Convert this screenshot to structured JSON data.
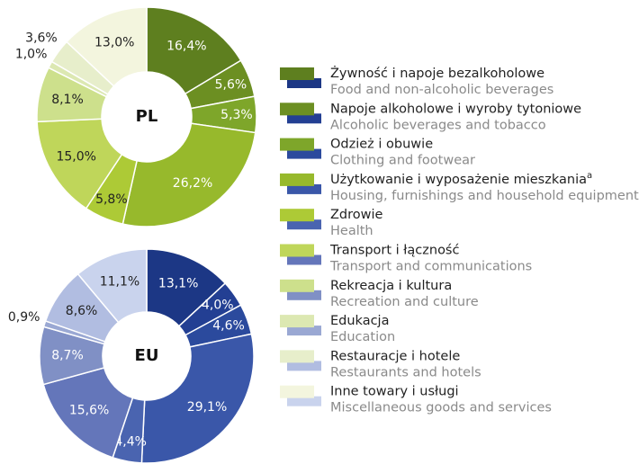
{
  "chart_data": [
    {
      "type": "pie",
      "title": "PL",
      "values": [
        16.4,
        5.6,
        5.3,
        26.2,
        5.8,
        15.0,
        8.1,
        1.0,
        3.6,
        13.0
      ],
      "value_labels": [
        "16,4%",
        "5,6%",
        "5,3%",
        "26,2%",
        "5,8%",
        "15,0%",
        "8,1%",
        "1,0%",
        "3,6%",
        "13,0%"
      ],
      "colors": [
        "#5e7f1f",
        "#6c8f22",
        "#7ea62a",
        "#97b92c",
        "#adca36",
        "#bfd65a",
        "#cde08c",
        "#dce8b2",
        "#e7eecb",
        "#f3f5de"
      ]
    },
    {
      "type": "pie",
      "title": "EU",
      "values": [
        13.1,
        4.0,
        4.6,
        29.1,
        4.4,
        15.6,
        8.7,
        0.9,
        8.6,
        11.1
      ],
      "value_labels": [
        "13,1%",
        "4,0%",
        "4,6%",
        "29,1%",
        "4,4%",
        "15,6%",
        "8,7%",
        "0,9%",
        "8,6%",
        "11,1%"
      ],
      "colors": [
        "#1c3785",
        "#233f93",
        "#2b4a9d",
        "#3a57a9",
        "#4a64b0",
        "#6476ba",
        "#8090c5",
        "#9aa8d3",
        "#b1bde1",
        "#c9d3ed"
      ]
    }
  ],
  "legend": {
    "items": [
      {
        "pl": "Żywność i napoje bezalkoholowe",
        "en": "Food and non-alcoholic beverages"
      },
      {
        "pl": "Napoje alkoholowe i wyroby tytoniowe",
        "en": "Alcoholic beverages and tobacco"
      },
      {
        "pl": "Odzież i obuwie",
        "en": "Clothing and footwear"
      },
      {
        "pl": "Użytkowanie i wyposażenie mieszkania",
        "en": "Housing, furnishings and household equipment",
        "note": "a"
      },
      {
        "pl": "Zdrowie",
        "en": "Health"
      },
      {
        "pl": "Transport i łączność",
        "en": "Transport and communications"
      },
      {
        "pl": "Rekreacja i kultura",
        "en": "Recreation and culture"
      },
      {
        "pl": "Edukacja",
        "en": "Education"
      },
      {
        "pl": "Restauracje i hotele",
        "en": "Restaurants and hotels"
      },
      {
        "pl": "Inne towary i usługi",
        "en": "Miscellaneous goods and services"
      }
    ]
  }
}
